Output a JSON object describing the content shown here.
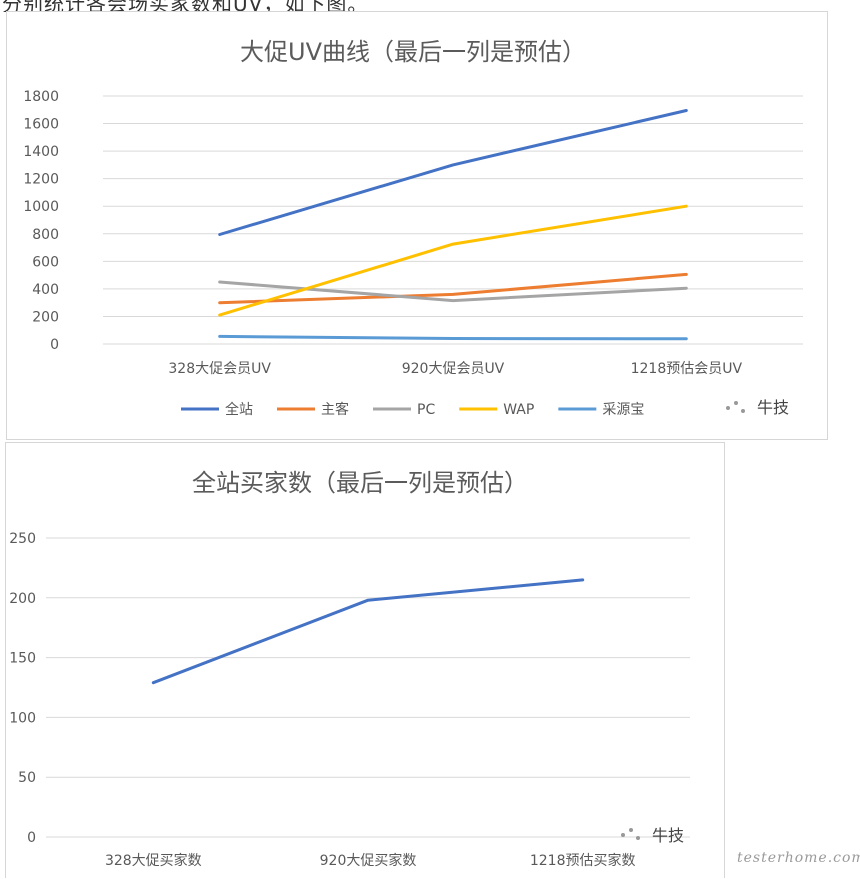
{
  "chart_data": [
    {
      "type": "line",
      "title": "大促UV曲线（最后一列是预估）",
      "categories": [
        "328大促会员UV",
        "920大促会员UV",
        "1218预估会员UV"
      ],
      "ylim": [
        0,
        1800
      ],
      "yticks": [
        0,
        200,
        400,
        600,
        800,
        1000,
        1200,
        1400,
        1600,
        1800
      ],
      "grid": true,
      "legend_position": "bottom",
      "series": [
        {
          "name": "全站",
          "values": [
            795,
            1300,
            1695
          ],
          "color": "#4472C4"
        },
        {
          "name": "主客",
          "values": [
            300,
            360,
            505
          ],
          "color": "#ED7D31"
        },
        {
          "name": "PC",
          "values": [
            450,
            315,
            405
          ],
          "color": "#A5A5A5"
        },
        {
          "name": "WAP",
          "values": [
            210,
            725,
            1000
          ],
          "color": "#FFC000"
        },
        {
          "name": "采源宝",
          "values": [
            55,
            40,
            38
          ],
          "color": "#5B9BD5"
        }
      ]
    },
    {
      "type": "line",
      "title": "全站买家数（最后一列是预估）",
      "categories": [
        "328大促买家数",
        "920大促买家数",
        "1218预估买家数"
      ],
      "ylim": [
        0,
        250
      ],
      "yticks": [
        0,
        50,
        100,
        150,
        200,
        250
      ],
      "grid": true,
      "series": [
        {
          "values": [
            129,
            198,
            215
          ],
          "color": "#4472C4"
        }
      ]
    }
  ],
  "watermarks": {
    "brand": "牛技",
    "site": "testerhome.com"
  },
  "top_strip_text": "分别统计各会场买家数和UV，如下图。"
}
